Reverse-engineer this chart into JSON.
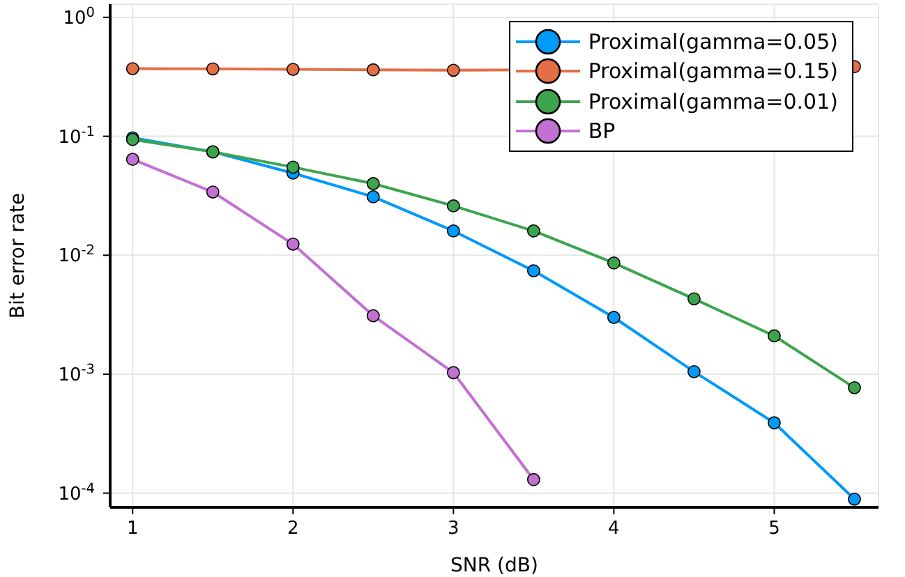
{
  "chart_data": {
    "type": "line",
    "xlabel": "SNR (dB)",
    "ylabel": "Bit error rate",
    "x": [
      1,
      1.5,
      2,
      2.5,
      3,
      3.5,
      4,
      4.5,
      5,
      5.5
    ],
    "series": [
      {
        "name": "Proximal(gamma=0.05)",
        "color": "#009af9",
        "values": [
          0.097,
          0.074,
          0.049,
          0.031,
          0.016,
          0.0074,
          0.003,
          0.00105,
          0.00039,
          8.9e-05
        ]
      },
      {
        "name": "Proximal(gamma=0.15)",
        "color": "#e26f46",
        "values": [
          0.37,
          0.369,
          0.365,
          0.362,
          0.359,
          0.362,
          null,
          null,
          null,
          0.385
        ]
      },
      {
        "name": "Proximal(gamma=0.01)",
        "color": "#3da44d",
        "values": [
          0.094,
          0.074,
          0.055,
          0.04,
          0.026,
          0.016,
          0.0086,
          0.0043,
          0.0021,
          0.00077
        ]
      },
      {
        "name": "BP",
        "color": "#c271d2",
        "values": [
          0.064,
          0.034,
          0.0124,
          0.0031,
          0.00103,
          0.00013,
          null,
          null,
          null,
          null
        ]
      }
    ],
    "xlim": [
      0.86,
      5.65
    ],
    "xticks": [
      1,
      2,
      3,
      4,
      5
    ],
    "ylim": [
      7.6e-05,
      1.29
    ],
    "log": "y",
    "yticks": [
      {
        "value": 0.0001,
        "label": "10$^{-4}$"
      },
      {
        "value": 0.001,
        "label": "10$^{-3}$"
      },
      {
        "value": 0.01,
        "label": "10$^{-2}$"
      },
      {
        "value": 0.1,
        "label": "10$^{-1}$"
      },
      {
        "value": 1,
        "label": "10$^{0}$"
      }
    ],
    "grid": true,
    "legend": "top right",
    "marker": "circle",
    "line_style": "solid"
  }
}
